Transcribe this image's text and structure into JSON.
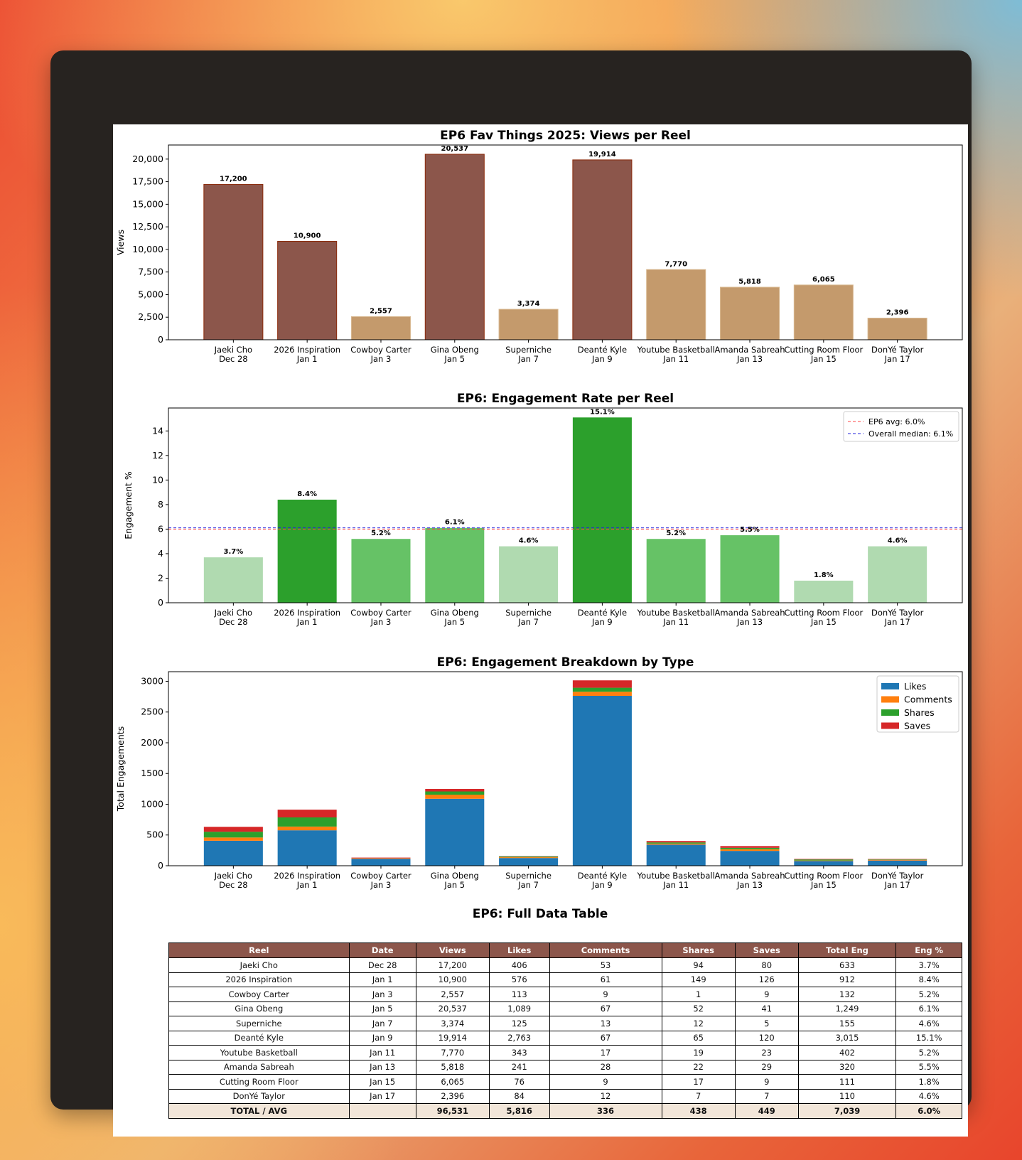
{
  "reels": [
    {
      "name": "Jaeki Cho",
      "date": "Dec 28",
      "views": 17200,
      "views_label": "17,200",
      "likes": 406,
      "likes_label": "406",
      "comments": 53,
      "shares": 94,
      "saves": 80,
      "total": 633,
      "total_label": "633",
      "eng": 3.7,
      "eng_label": "3.7%"
    },
    {
      "name": "2026 Inspiration",
      "date": "Jan 1",
      "views": 10900,
      "views_label": "10,900",
      "likes": 576,
      "likes_label": "576",
      "comments": 61,
      "shares": 149,
      "saves": 126,
      "total": 912,
      "total_label": "912",
      "eng": 8.4,
      "eng_label": "8.4%"
    },
    {
      "name": "Cowboy Carter",
      "date": "Jan 3",
      "views": 2557,
      "views_label": "2,557",
      "likes": 113,
      "likes_label": "113",
      "comments": 9,
      "shares": 1,
      "saves": 9,
      "total": 132,
      "total_label": "132",
      "eng": 5.2,
      "eng_label": "5.2%"
    },
    {
      "name": "Gina Obeng",
      "date": "Jan 5",
      "views": 20537,
      "views_label": "20,537",
      "likes": 1089,
      "likes_label": "1,089",
      "comments": 67,
      "shares": 52,
      "saves": 41,
      "total": 1249,
      "total_label": "1,249",
      "eng": 6.1,
      "eng_label": "6.1%"
    },
    {
      "name": "Superniche",
      "date": "Jan 7",
      "views": 3374,
      "views_label": "3,374",
      "likes": 125,
      "likes_label": "125",
      "comments": 13,
      "shares": 12,
      "saves": 5,
      "total": 155,
      "total_label": "155",
      "eng": 4.6,
      "eng_label": "4.6%"
    },
    {
      "name": "Deanté Kyle",
      "date": "Jan 9",
      "views": 19914,
      "views_label": "19,914",
      "likes": 2763,
      "likes_label": "2,763",
      "comments": 67,
      "shares": 65,
      "saves": 120,
      "total": 3015,
      "total_label": "3,015",
      "eng": 15.1,
      "eng_label": "15.1%"
    },
    {
      "name": "Youtube Basketball",
      "date": "Jan 11",
      "views": 7770,
      "views_label": "7,770",
      "likes": 343,
      "likes_label": "343",
      "comments": 17,
      "shares": 19,
      "saves": 23,
      "total": 402,
      "total_label": "402",
      "eng": 5.2,
      "eng_label": "5.2%"
    },
    {
      "name": "Amanda Sabreah",
      "date": "Jan 13",
      "views": 5818,
      "views_label": "5,818",
      "likes": 241,
      "likes_label": "241",
      "comments": 28,
      "shares": 22,
      "saves": 29,
      "total": 320,
      "total_label": "320",
      "eng": 5.5,
      "eng_label": "5.5%"
    },
    {
      "name": "Cutting Room Floor",
      "date": "Jan 15",
      "views": 6065,
      "views_label": "6,065",
      "likes": 76,
      "likes_label": "76",
      "comments": 9,
      "shares": 17,
      "saves": 9,
      "total": 111,
      "total_label": "111",
      "eng": 1.8,
      "eng_label": "1.8%"
    },
    {
      "name": "DonYé Taylor",
      "date": "Jan 17",
      "views": 2396,
      "views_label": "2,396",
      "likes": 84,
      "likes_label": "84",
      "comments": 12,
      "shares": 7,
      "saves": 7,
      "total": 110,
      "total_label": "110",
      "eng": 4.6,
      "eng_label": "4.6%"
    }
  ],
  "chart_data": [
    {
      "type": "bar",
      "title": "EP6 Fav Things 2025: Views per Reel",
      "xlabel": "",
      "ylabel": "Views",
      "ylim": [
        0,
        21560
      ],
      "yticks": [
        0,
        2500,
        5000,
        7500,
        10000,
        12500,
        15000,
        17500,
        20000
      ],
      "ytick_labels": [
        "0",
        "2,500",
        "5,000",
        "7,500",
        "10,000",
        "12,500",
        "15,000",
        "17,500",
        "20,000"
      ],
      "colors": {
        "high": "#8c564b",
        "high_edge": "#8b2a0a",
        "low": "#c49a6c"
      },
      "high_threshold": 10000
    },
    {
      "type": "bar",
      "title": "EP6: Engagement Rate per Reel",
      "xlabel": "",
      "ylabel": "Engagement %",
      "ylim": [
        0,
        15.87
      ],
      "yticks": [
        0,
        2,
        4,
        6,
        8,
        10,
        12,
        14
      ],
      "ytick_labels": [
        "0",
        "2",
        "4",
        "6",
        "8",
        "10",
        "12",
        "14"
      ],
      "colors": {
        "high": "#2ca02c",
        "mid": "#66c266",
        "low": "#b0dab0"
      },
      "reference_lines": [
        {
          "label": "EP6 avg: 6.0%",
          "value": 6.0,
          "color": "#ff4444"
        },
        {
          "label": "Overall median: 6.1%",
          "value": 6.1,
          "color": "#2222dd"
        }
      ],
      "legend": "top-right"
    },
    {
      "type": "bar",
      "stacked": true,
      "title": "EP6: Engagement Breakdown by Type",
      "xlabel": "",
      "ylabel": "Total Engagements",
      "ylim": [
        0,
        3156
      ],
      "yticks": [
        0,
        500,
        1000,
        1500,
        2000,
        2500,
        3000
      ],
      "ytick_labels": [
        "0",
        "500",
        "1000",
        "1500",
        "2000",
        "2500",
        "3000"
      ],
      "series": [
        {
          "name": "Likes",
          "key": "likes",
          "color": "#1f77b4"
        },
        {
          "name": "Comments",
          "key": "comments",
          "color": "#ff7f0e"
        },
        {
          "name": "Shares",
          "key": "shares",
          "color": "#2ca02c"
        },
        {
          "name": "Saves",
          "key": "saves",
          "color": "#d62728"
        }
      ],
      "legend": "top-right"
    },
    {
      "type": "table",
      "title": "EP6: Full Data Table",
      "headers": [
        "Reel",
        "Date",
        "Views",
        "Likes",
        "Comments",
        "Shares",
        "Saves",
        "Total Eng",
        "Eng %"
      ],
      "total_row": [
        "TOTAL / AVG",
        "",
        "96,531",
        "5,816",
        "336",
        "438",
        "449",
        "7,039",
        "6.0%"
      ]
    }
  ]
}
